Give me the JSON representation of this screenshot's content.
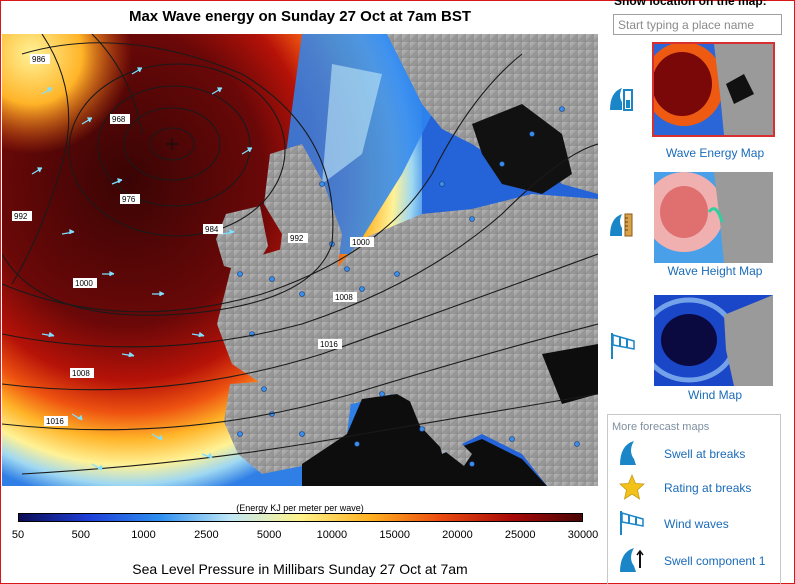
{
  "map": {
    "title": "Max Wave energy on Sunday 27 Oct at 7am BST",
    "isobar_labels": [
      "986",
      "968",
      "976",
      "984",
      "992",
      "992",
      "1000",
      "1000",
      "1008",
      "1016",
      "1008",
      "1016"
    ]
  },
  "colorbar": {
    "caption": "(Energy KJ per meter per wave)",
    "ticks": [
      "50",
      "500",
      "1000",
      "2500",
      "5000",
      "10000",
      "15000",
      "20000",
      "25000",
      "30000"
    ],
    "colors": [
      "#0b0c55",
      "#1f3fd9",
      "#2e8ff0",
      "#bfe7f6",
      "#fff38a",
      "#ffb020",
      "#ea4a10",
      "#a80a08",
      "#4a0606"
    ]
  },
  "footer": {
    "title": "Sea Level Pressure in Millibars Sunday 27 Oct at 7am"
  },
  "sidebar": {
    "show_location_label": "Show location on the map:",
    "search_placeholder": "Start typing a place name",
    "maps": [
      {
        "label": "Wave Energy Map",
        "icon": "wave-energy-icon",
        "selected": true
      },
      {
        "label": "Wave Height Map",
        "icon": "wave-height-icon",
        "selected": false
      },
      {
        "label": "Wind Map",
        "icon": "wind-sock-icon",
        "selected": false
      }
    ],
    "more_title": "More forecast maps",
    "more": [
      {
        "label": "Swell at breaks",
        "icon": "wave-icon"
      },
      {
        "label": "Rating at breaks",
        "icon": "star-icon"
      },
      {
        "label": "Wind waves",
        "icon": "wind-sock-icon"
      },
      {
        "label": "Swell component 1",
        "icon": "swell-component-icon"
      }
    ]
  },
  "accent": {
    "link": "#1a6bb8",
    "selected_outline": "#d83030",
    "icon_blue": "#1a86c8"
  }
}
